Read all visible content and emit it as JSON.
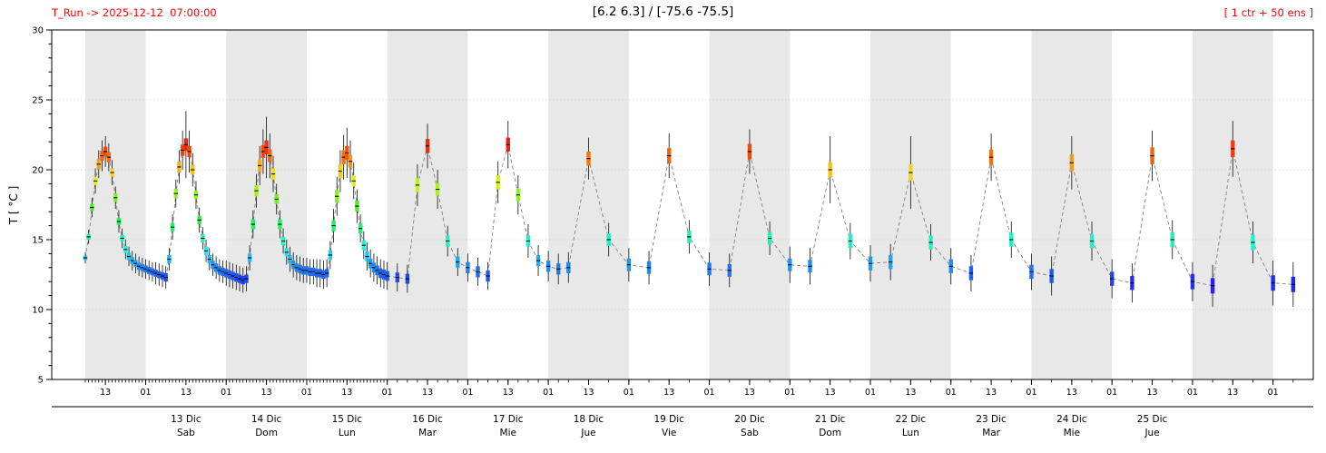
{
  "chart_data": {
    "type": "box",
    "subtype": "ensemble-meteogram-temperature",
    "title": "[6.2 6.3] / [-75.6 -75.5]",
    "run_label": "T_Run -> 2025-12-12  07:00:00",
    "ens_label": "[ 1 ctr + 50 ens ]",
    "ylabel": "T [ °C ]",
    "ylim": [
      5,
      30
    ],
    "ytick_major_step": 5,
    "ytick_minor_step": 1,
    "xlim_hours": [
      -10,
      366
    ],
    "x_units": "hours since run (2025-12-12 07:00 local)",
    "grid": "dotted horizontal at major y ticks",
    "legend_position": "none",
    "colors": {
      "accent_red": "#ff0000",
      "band_gray": "#e8e8e8",
      "dashed_line": "#808080",
      "whisker": "#1a1a1a",
      "frame": "#000000"
    },
    "colormap": {
      "name": "rainbow",
      "vmin": 10.5,
      "vmax": 22.0
    },
    "hour_ticks": {
      "first_t": 6,
      "step": 12,
      "labels_cycle": [
        "13",
        "01"
      ],
      "last_t": 354
    },
    "day_bands_t": [
      [
        0,
        18
      ],
      [
        42,
        66
      ],
      [
        90,
        114
      ],
      [
        138,
        162
      ],
      [
        186,
        210
      ],
      [
        234,
        258
      ],
      [
        282,
        306
      ],
      [
        330,
        354
      ]
    ],
    "day_labels": [
      {
        "t": 30,
        "date": "13 Dic",
        "weekday": "Sab"
      },
      {
        "t": 54,
        "date": "14 Dic",
        "weekday": "Dom"
      },
      {
        "t": 78,
        "date": "15 Dic",
        "weekday": "Lun"
      },
      {
        "t": 102,
        "date": "16 Dic",
        "weekday": "Mar"
      },
      {
        "t": 126,
        "date": "17 Dic",
        "weekday": "Mie"
      },
      {
        "t": 150,
        "date": "18 Dic",
        "weekday": "Jue"
      },
      {
        "t": 174,
        "date": "19 Dic",
        "weekday": "Vie"
      },
      {
        "t": 198,
        "date": "20 Dic",
        "weekday": "Sab"
      },
      {
        "t": 222,
        "date": "21 Dic",
        "weekday": "Dom"
      },
      {
        "t": 246,
        "date": "22 Dic",
        "weekday": "Lun"
      },
      {
        "t": 270,
        "date": "23 Dic",
        "weekday": "Mar"
      },
      {
        "t": 294,
        "date": "24 Dic",
        "weekday": "Mie"
      },
      {
        "t": 318,
        "date": "25 Dic",
        "weekday": "Jue"
      }
    ],
    "points_format": [
      "t_hours",
      "median_C",
      "box_half_C",
      "whisker_half_C"
    ],
    "points": [
      [
        0,
        13.7,
        0.15,
        0.4
      ],
      [
        1,
        15.2,
        0.2,
        0.5
      ],
      [
        2,
        17.3,
        0.25,
        0.7
      ],
      [
        3,
        19.2,
        0.3,
        0.9
      ],
      [
        4,
        20.4,
        0.35,
        1.0
      ],
      [
        5,
        21.0,
        0.35,
        1.1
      ],
      [
        6,
        21.3,
        0.35,
        1.1
      ],
      [
        7,
        20.9,
        0.35,
        1.0
      ],
      [
        8,
        19.8,
        0.3,
        0.9
      ],
      [
        9,
        18.0,
        0.3,
        0.8
      ],
      [
        10,
        16.3,
        0.25,
        0.8
      ],
      [
        11,
        15.1,
        0.25,
        0.7
      ],
      [
        12,
        14.3,
        0.25,
        0.7
      ],
      [
        13,
        13.8,
        0.25,
        0.7
      ],
      [
        14,
        13.5,
        0.25,
        0.7
      ],
      [
        15,
        13.3,
        0.25,
        0.7
      ],
      [
        16,
        13.1,
        0.25,
        0.7
      ],
      [
        17,
        13.0,
        0.25,
        0.7
      ],
      [
        18,
        12.9,
        0.25,
        0.7
      ],
      [
        19,
        12.8,
        0.25,
        0.7
      ],
      [
        20,
        12.7,
        0.25,
        0.7
      ],
      [
        21,
        12.6,
        0.25,
        0.8
      ],
      [
        22,
        12.5,
        0.25,
        0.8
      ],
      [
        23,
        12.4,
        0.25,
        0.8
      ],
      [
        24,
        12.3,
        0.3,
        0.8
      ],
      [
        25,
        13.6,
        0.3,
        0.8
      ],
      [
        26,
        15.9,
        0.3,
        0.9
      ],
      [
        27,
        18.3,
        0.35,
        1.0
      ],
      [
        28,
        20.2,
        0.4,
        1.2
      ],
      [
        29,
        21.4,
        0.4,
        1.4
      ],
      [
        30,
        21.8,
        0.45,
        2.4
      ],
      [
        31,
        21.3,
        0.4,
        1.5
      ],
      [
        32,
        20.0,
        0.35,
        1.2
      ],
      [
        33,
        18.2,
        0.3,
        1.0
      ],
      [
        34,
        16.4,
        0.3,
        0.9
      ],
      [
        35,
        15.1,
        0.3,
        0.8
      ],
      [
        36,
        14.2,
        0.3,
        0.8
      ],
      [
        37,
        13.6,
        0.3,
        0.8
      ],
      [
        38,
        13.2,
        0.3,
        0.8
      ],
      [
        39,
        13.0,
        0.3,
        0.8
      ],
      [
        40,
        12.8,
        0.3,
        0.8
      ],
      [
        41,
        12.7,
        0.3,
        0.8
      ],
      [
        42,
        12.6,
        0.3,
        0.9
      ],
      [
        43,
        12.5,
        0.3,
        0.9
      ],
      [
        44,
        12.4,
        0.3,
        0.9
      ],
      [
        45,
        12.3,
        0.3,
        0.9
      ],
      [
        46,
        12.2,
        0.3,
        0.9
      ],
      [
        47,
        12.1,
        0.3,
        0.9
      ],
      [
        48,
        12.2,
        0.3,
        0.9
      ],
      [
        49,
        13.7,
        0.3,
        0.9
      ],
      [
        50,
        16.1,
        0.35,
        1.0
      ],
      [
        51,
        18.5,
        0.4,
        1.2
      ],
      [
        52,
        20.3,
        0.45,
        1.4
      ],
      [
        53,
        21.3,
        0.45,
        1.6
      ],
      [
        54,
        21.6,
        0.5,
        2.2
      ],
      [
        55,
        21.0,
        0.45,
        1.6
      ],
      [
        56,
        19.7,
        0.4,
        1.3
      ],
      [
        57,
        17.9,
        0.35,
        1.1
      ],
      [
        58,
        16.1,
        0.35,
        1.0
      ],
      [
        59,
        14.9,
        0.3,
        0.9
      ],
      [
        60,
        14.1,
        0.3,
        0.9
      ],
      [
        61,
        13.6,
        0.3,
        0.9
      ],
      [
        62,
        13.2,
        0.3,
        0.9
      ],
      [
        63,
        13.0,
        0.3,
        0.9
      ],
      [
        64,
        12.9,
        0.3,
        0.9
      ],
      [
        65,
        12.8,
        0.3,
        0.9
      ],
      [
        66,
        12.8,
        0.3,
        0.9
      ],
      [
        67,
        12.7,
        0.3,
        0.9
      ],
      [
        68,
        12.7,
        0.3,
        0.9
      ],
      [
        69,
        12.6,
        0.3,
        1.0
      ],
      [
        70,
        12.6,
        0.3,
        1.0
      ],
      [
        71,
        12.5,
        0.3,
        1.0
      ],
      [
        72,
        12.6,
        0.3,
        1.0
      ],
      [
        73,
        13.9,
        0.35,
        1.0
      ],
      [
        74,
        16.0,
        0.4,
        1.2
      ],
      [
        75,
        18.1,
        0.45,
        1.4
      ],
      [
        76,
        19.9,
        0.5,
        1.5
      ],
      [
        77,
        20.9,
        0.5,
        1.6
      ],
      [
        78,
        21.2,
        0.5,
        1.8
      ],
      [
        79,
        20.6,
        0.45,
        1.5
      ],
      [
        80,
        19.2,
        0.4,
        1.3
      ],
      [
        81,
        17.4,
        0.4,
        1.2
      ],
      [
        82,
        15.8,
        0.35,
        1.0
      ],
      [
        83,
        14.6,
        0.35,
        1.0
      ],
      [
        84,
        13.8,
        0.35,
        1.0
      ],
      [
        85,
        13.3,
        0.35,
        1.0
      ],
      [
        86,
        13.0,
        0.35,
        1.0
      ],
      [
        87,
        12.8,
        0.35,
        1.0
      ],
      [
        88,
        12.6,
        0.35,
        1.0
      ],
      [
        89,
        12.5,
        0.35,
        1.0
      ],
      [
        90,
        12.4,
        0.35,
        1.0
      ],
      [
        93,
        12.3,
        0.35,
        1.0
      ],
      [
        96,
        12.2,
        0.35,
        1.0
      ],
      [
        99,
        18.9,
        0.5,
        1.5
      ],
      [
        102,
        21.7,
        0.5,
        1.6
      ],
      [
        105,
        18.6,
        0.45,
        1.4
      ],
      [
        108,
        14.9,
        0.4,
        1.1
      ],
      [
        111,
        13.4,
        0.4,
        1.0
      ],
      [
        114,
        13.0,
        0.4,
        1.0
      ],
      [
        117,
        12.7,
        0.4,
        1.0
      ],
      [
        120,
        12.4,
        0.4,
        1.0
      ],
      [
        123,
        19.1,
        0.5,
        1.5
      ],
      [
        126,
        21.8,
        0.5,
        1.7
      ],
      [
        129,
        18.2,
        0.45,
        1.4
      ],
      [
        132,
        14.9,
        0.4,
        1.2
      ],
      [
        135,
        13.5,
        0.4,
        1.1
      ],
      [
        138,
        13.1,
        0.4,
        1.1
      ],
      [
        141,
        12.9,
        0.4,
        1.1
      ],
      [
        144,
        13.0,
        0.4,
        1.1
      ],
      [
        150,
        20.8,
        0.5,
        1.5
      ],
      [
        156,
        15.0,
        0.45,
        1.2
      ],
      [
        162,
        13.2,
        0.45,
        1.2
      ],
      [
        168,
        13.0,
        0.45,
        1.2
      ],
      [
        174,
        21.0,
        0.55,
        1.6
      ],
      [
        180,
        15.2,
        0.45,
        1.2
      ],
      [
        186,
        12.9,
        0.45,
        1.2
      ],
      [
        192,
        12.8,
        0.45,
        1.2
      ],
      [
        198,
        21.3,
        0.55,
        1.6
      ],
      [
        204,
        15.1,
        0.45,
        1.2
      ],
      [
        210,
        13.2,
        0.45,
        1.3
      ],
      [
        216,
        13.1,
        0.45,
        1.3
      ],
      [
        222,
        20.0,
        0.55,
        2.4
      ],
      [
        228,
        14.9,
        0.5,
        1.3
      ],
      [
        234,
        13.3,
        0.5,
        1.3
      ],
      [
        240,
        13.4,
        0.5,
        1.3
      ],
      [
        246,
        19.8,
        0.6,
        2.6
      ],
      [
        252,
        14.8,
        0.5,
        1.3
      ],
      [
        258,
        13.1,
        0.5,
        1.3
      ],
      [
        264,
        12.6,
        0.5,
        1.3
      ],
      [
        270,
        20.9,
        0.55,
        1.7
      ],
      [
        276,
        15.0,
        0.5,
        1.3
      ],
      [
        282,
        12.7,
        0.5,
        1.3
      ],
      [
        288,
        12.4,
        0.5,
        1.4
      ],
      [
        294,
        20.5,
        0.6,
        1.9
      ],
      [
        300,
        14.9,
        0.5,
        1.4
      ],
      [
        306,
        12.2,
        0.5,
        1.4
      ],
      [
        312,
        11.9,
        0.5,
        1.4
      ],
      [
        318,
        21.0,
        0.6,
        1.8
      ],
      [
        324,
        15.0,
        0.55,
        1.4
      ],
      [
        330,
        12.0,
        0.55,
        1.4
      ],
      [
        336,
        11.7,
        0.55,
        1.5
      ],
      [
        342,
        21.5,
        0.6,
        2.0
      ],
      [
        348,
        14.8,
        0.55,
        1.5
      ],
      [
        354,
        11.9,
        0.55,
        1.6
      ],
      [
        360,
        11.8,
        0.55,
        1.6
      ]
    ]
  }
}
